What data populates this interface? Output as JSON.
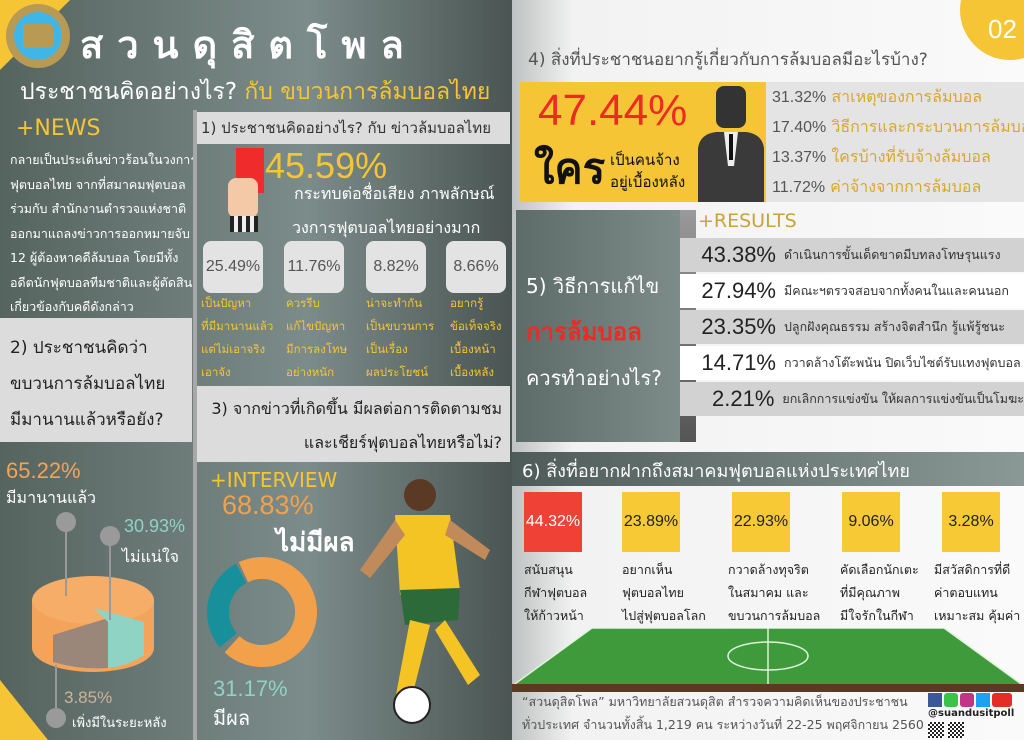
{
  "header": {
    "logo": "SUAN DUSIT POLL",
    "brand": "สวนดุสิตโพล",
    "title_white": "ประชาชนคิดอย่างไร?",
    "title_yellow": "กับ ขบวนการล้มบอลไทย",
    "page_number": "02"
  },
  "news": {
    "label": "+NEWS",
    "lines": [
      "กลายเป็นประเด็นข่าวร้อนในวงการ",
      "ฟุตบอลไทย จากที่สมาคมฟุตบอล",
      "ร่วมกับ สำนักงานตำรวจแห่งชาติ",
      "ออกมาแถลงข่าวการออกหมายจับ",
      "12 ผู้ต้องหาคดีล้มบอล โดยมีทั้ง",
      "อดีตนักฟุตบอลทีมชาติและผู้ตัดสิน",
      "เกี่ยวข้องกับคดีดังกล่าว"
    ]
  },
  "section1": {
    "title": "1) ประชาชนคิดอย่างไร? กับ ข่าวล้มบอลไทย",
    "main_value": "45.59%",
    "main_text": [
      "กระทบต่อชื่อเสียง ภาพลักษณ์",
      "วงการฟุตบอลไทยอย่างมาก"
    ],
    "items": [
      {
        "value": "25.49%",
        "lines": [
          "เป็นปัญหา",
          "ที่มีมานานแล้ว",
          "แต่ไม่เอาจริง",
          "เอาจัง"
        ]
      },
      {
        "value": "11.76%",
        "lines": [
          "ควรรีบ",
          "แก้ไขปัญหา",
          "มีการลงโทษ",
          "อย่างหนัก"
        ]
      },
      {
        "value": "8.82%",
        "lines": [
          "น่าจะทำกัน",
          "เป็นขบวนการ",
          "เป็นเรื่อง",
          "ผลประโยชน์"
        ]
      },
      {
        "value": "8.66%",
        "lines": [
          "อยากรู้",
          "ข้อเท็จจริง",
          "เบื้องหน้า",
          "เบื้องหลัง"
        ]
      }
    ]
  },
  "section2": {
    "title": [
      "2) ประชาชนคิดว่า",
      "ขบวนการล้มบอลไทย",
      "มีมานานแล้วหรือยัง?"
    ],
    "slices": [
      {
        "value": "65.22%",
        "label": "มีมานานแล้ว",
        "color": "#f3a35a"
      },
      {
        "value": "30.93%",
        "label": "ไม่แน่ใจ",
        "color": "#8fd3c5"
      },
      {
        "value": "3.85%",
        "label": "เพิ่งมีในระยะหลัง",
        "color": "#9a877a"
      }
    ]
  },
  "section3": {
    "title": [
      "3) จากข่าวที่เกิดขึ้น มีผลต่อการติดตามชม",
      "และเชียร์ฟุตบอลไทยหรือไม่?"
    ],
    "label": "+INTERVIEW",
    "no": {
      "value": "68.83%",
      "label": "ไม่มีผล",
      "color": "#f3a04a"
    },
    "yes": {
      "value": "31.17%",
      "label": "มีผล",
      "color": "#17909c"
    }
  },
  "section4": {
    "title": "4)  สิ่งที่ประชาชนอยากรู้เกี่ยวกับการล้มบอลมีอะไรบ้าง?",
    "main_value": "47.44%",
    "who": "ใคร",
    "who_text": [
      "เป็นคนจ้าง",
      "อยู่เบื้องหลัง"
    ],
    "items": [
      {
        "value": "31.32%",
        "label": "สาเหตุของการล้มบอล"
      },
      {
        "value": "17.40%",
        "label": "วิธีการและกระบวนการล้มบอล"
      },
      {
        "value": "13.37%",
        "label": "ใครบ้างที่รับจ้างล้มบอล"
      },
      {
        "value": "11.72%",
        "label": "ค่าจ้างจากการล้มบอล"
      }
    ]
  },
  "section5": {
    "title1": "5) วิธีการแก้ไข",
    "title2": "การล้มบอล",
    "title3": "ควรทำอย่างไร?",
    "label": "+RESULTS",
    "items": [
      {
        "value": "43.38%",
        "label": "ดำเนินการขั้นเด็ดขาดมีบทลงโทษรุนแรง"
      },
      {
        "value": "27.94%",
        "label": "มีคณะฯตรวจสอบจากทั้งคนในและคนนอก"
      },
      {
        "value": "23.35%",
        "label": "ปลูกฝังคุณธรรม สร้างจิตสำนึก รู้แพ้รู้ชนะ"
      },
      {
        "value": "14.71%",
        "label": "กวาดล้างโต๊ะพนัน ปิดเว็บไซต์รับแทงฟุตบอล"
      },
      {
        "value": "2.21%",
        "label": "ยกเลิกการแข่งขัน ให้ผลการแข่งขันเป็นโมฆะ"
      }
    ]
  },
  "section6": {
    "title": "6)  สิ่งที่อยากฝากถึงสมาคมฟุตบอลแห่งประเทศไทย",
    "items": [
      {
        "value": "44.32%",
        "lines": [
          "สนับสนุน",
          "กีฬาฟุตบอล",
          "ให้ก้าวหน้า"
        ],
        "color": "#ef4136"
      },
      {
        "value": "23.89%",
        "lines": [
          "อยากเห็น",
          "ฟุตบอลไทย",
          "ไปสู่ฟุตบอลโลก"
        ],
        "color": "#f7c934"
      },
      {
        "value": "22.93%",
        "lines": [
          "กวาดล้างทุจริต",
          "ในสมาคม และ",
          "ขบวนการล้มบอล"
        ],
        "color": "#f7c934"
      },
      {
        "value": "9.06%",
        "lines": [
          "คัดเลือกนักเตะ",
          "ที่มีคุณภาพ",
          "มีใจรักในกีฬา"
        ],
        "color": "#f7c934"
      },
      {
        "value": "3.28%",
        "lines": [
          "มีสวัสดิการที่ดี",
          "ค่าตอบแทน",
          "เหมาะสม คุ้มค่า"
        ],
        "color": "#f7c934"
      }
    ]
  },
  "footer": {
    "lines": [
      "“สวนดุสิตโพล” มหาวิทยาลัยสวนดุสิต สำรวจความคิดเห็นของประชาชน",
      "ทั่วประเทศ จำนวนทั้งสิ้น 1,219 คน ระหว่างวันที่ 22-25 พฤศจิกายน 2560"
    ],
    "handle": "@suandusitpoll",
    "social": [
      "facebook-icon",
      "line-icon",
      "instagram-icon",
      "twitter-icon",
      "youtube-icon"
    ]
  }
}
